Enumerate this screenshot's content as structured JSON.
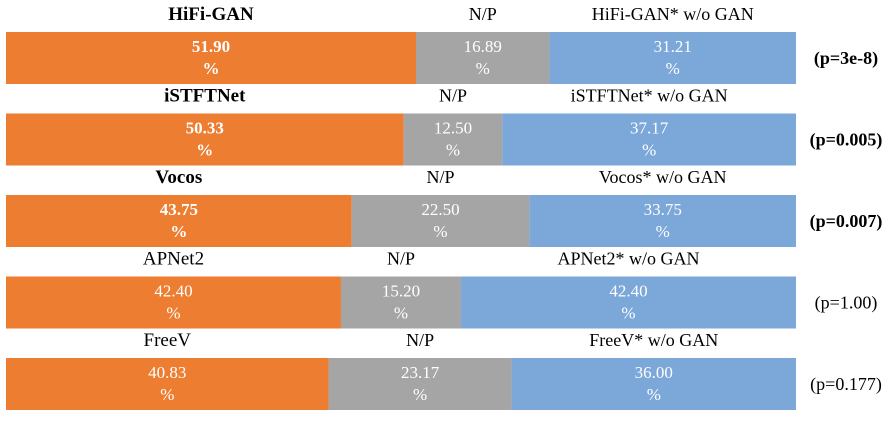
{
  "chart_data": {
    "type": "bar",
    "orientation": "horizontal-stacked-100",
    "colors": {
      "left": "#ED7D31",
      "neutral": "#A5A5A5",
      "right": "#7BA7D9"
    },
    "percent_symbol": "%",
    "groups": [
      {
        "left_label": "HiFi-GAN",
        "mid_label": "N/P",
        "right_label": "HiFi-GAN* w/o GAN",
        "values": [
          51.9,
          16.89,
          31.21
        ],
        "value_labels": [
          "51.90",
          "16.89",
          "31.21"
        ],
        "p": "(p=3e-8)",
        "bold": true
      },
      {
        "left_label": "iSTFTNet",
        "mid_label": "N/P",
        "right_label": "iSTFTNet* w/o GAN",
        "values": [
          50.33,
          12.5,
          37.17
        ],
        "value_labels": [
          "50.33",
          "12.50",
          "37.17"
        ],
        "p": "(p=0.005)",
        "bold": true
      },
      {
        "left_label": "Vocos",
        "mid_label": "N/P",
        "right_label": "Vocos* w/o GAN",
        "values": [
          43.75,
          22.5,
          33.75
        ],
        "value_labels": [
          "43.75",
          "22.50",
          "33.75"
        ],
        "p": "(p=0.007)",
        "bold": true
      },
      {
        "left_label": "APNet2",
        "mid_label": "N/P",
        "right_label": "APNet2* w/o GAN",
        "values": [
          42.4,
          15.2,
          42.4
        ],
        "value_labels": [
          "42.40",
          "15.20",
          "42.40"
        ],
        "p": "(p=1.00)",
        "bold": false
      },
      {
        "left_label": "FreeV",
        "mid_label": "N/P",
        "right_label": "FreeV* w/o GAN",
        "values": [
          40.83,
          23.17,
          36.0
        ],
        "value_labels": [
          "40.83",
          "23.17",
          "36.00"
        ],
        "p": "(p=0.177)",
        "bold": false
      }
    ]
  }
}
